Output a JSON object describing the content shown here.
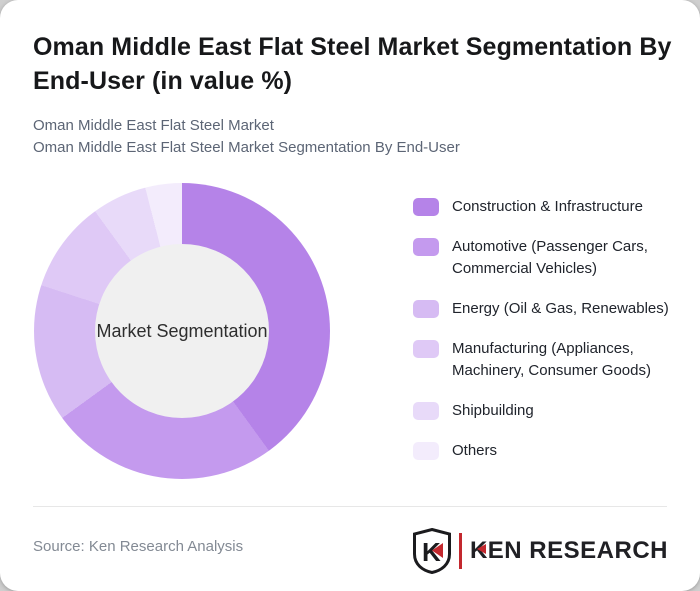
{
  "page": {
    "background": "#cfcfcf",
    "card_background": "#ffffff"
  },
  "header": {
    "title": "Oman Middle East Flat Steel Market Segmentation By End-User (in value %)",
    "subtitle_line1": "Oman Middle East Flat Steel Market",
    "subtitle_line2": "Oman Middle East Flat Steel Market Segmentation By End-User"
  },
  "chart_data": {
    "type": "pie",
    "variant": "donut",
    "title": "Oman Middle East Flat Steel Market Segmentation By End-User (in value %)",
    "center_label": "Market Segmentation",
    "unit": "value %",
    "start_angle_deg": 0,
    "direction": "clockwise",
    "legend_position": "right",
    "categories": [
      "Construction & Infrastructure",
      "Automotive (Passenger Cars, Commercial Vehicles)",
      "Energy (Oil & Gas, Renewables)",
      "Manufacturing (Appliances, Machinery, Consumer Goods)",
      "Shipbuilding",
      "Others"
    ],
    "values": [
      40,
      25,
      15,
      10,
      6,
      4
    ],
    "colors": [
      "#b583e8",
      "#c49aee",
      "#d6bbf3",
      "#dfc9f6",
      "#e8daf9",
      "#f3ecfc"
    ],
    "hole_color": "#f0f0f0"
  },
  "footer": {
    "source": "Source: Ken Research Analysis",
    "logo": {
      "shield_letter": "K",
      "wordmark": "KEN RESEARCH",
      "accent_color": "#c3282e",
      "ink_color": "#1b1b1e"
    }
  }
}
